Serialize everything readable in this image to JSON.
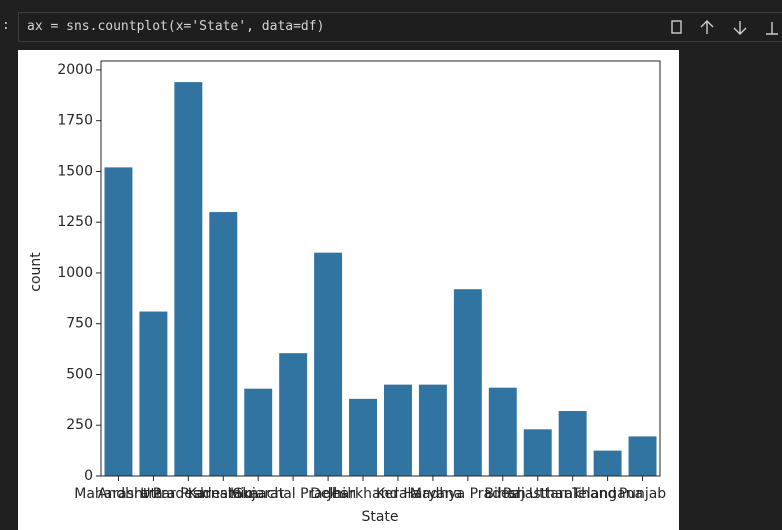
{
  "cell": {
    "prompt": ":",
    "code": "ax = sns.countplot(x='State', data=df)"
  },
  "chart_data": {
    "type": "bar",
    "categories": [
      "Maharashtra",
      "Andhra Pradesh",
      "Uttar Pradesh",
      "Karnataka",
      "Gujarat",
      "Himachal Pradesh",
      "Delhi",
      "Jharkhand",
      "Kerala",
      "Haryana",
      "Madhya Pradesh",
      "Bihar",
      "Rajasthan",
      "Uttarakhand",
      "Telangana",
      "Punjab"
    ],
    "values": [
      1520,
      810,
      1940,
      1300,
      430,
      605,
      1100,
      380,
      450,
      450,
      920,
      435,
      230,
      320,
      125,
      195
    ],
    "color": "#3274a1",
    "x_label": "State",
    "y_label": "count",
    "ylim": [
      0,
      2044
    ],
    "yticks": [
      0,
      250,
      500,
      750,
      1000,
      1250,
      1500,
      1750,
      2000
    ]
  }
}
